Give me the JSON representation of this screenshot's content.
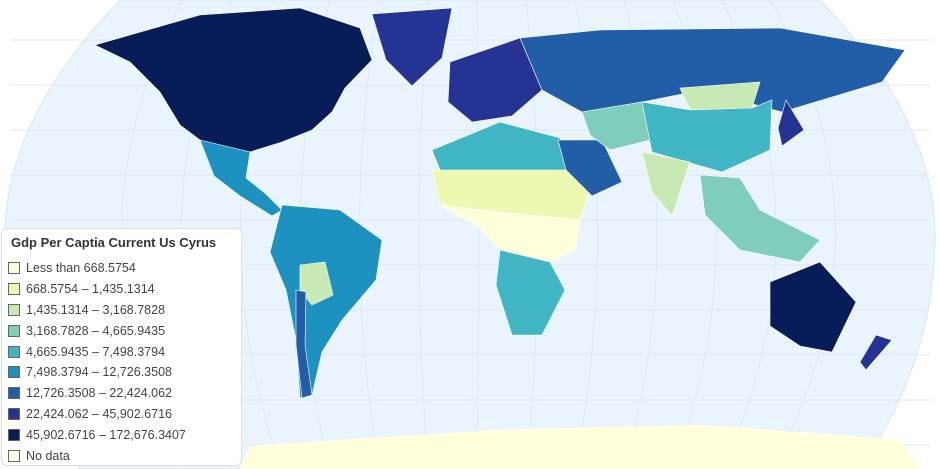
{
  "legend": {
    "title": "Gdp Per Captia Current Us Cyrus",
    "items": [
      {
        "label": "Less than 668.5754",
        "color": "#ffffd9"
      },
      {
        "label": "668.5754 – 1,435.1314",
        "color": "#edf8b1"
      },
      {
        "label": "1,435.1314 – 3,168.7828",
        "color": "#c7e9b4"
      },
      {
        "label": "3,168.7828 – 4,665.9435",
        "color": "#7fcdbb"
      },
      {
        "label": "4,665.9435 – 7,498.3794",
        "color": "#41b6c4"
      },
      {
        "label": "7,498.3794 – 12,726.3508",
        "color": "#1d91c0"
      },
      {
        "label": "12,726.3508 – 22,424.062",
        "color": "#225ea8"
      },
      {
        "label": "22,424.062 – 45,902.6716",
        "color": "#253494"
      },
      {
        "label": "45,902.6716 – 172,676.3407",
        "color": "#081d58"
      },
      {
        "label": "No data",
        "color": "#ffffe6"
      }
    ]
  },
  "map": {
    "ocean_color": "#eaf4fc",
    "regions": [
      {
        "name": "north-america",
        "color": "#081d58"
      },
      {
        "name": "greenland",
        "color": "#253494"
      },
      {
        "name": "mexico-central-america",
        "color": "#1d91c0"
      },
      {
        "name": "south-america",
        "color": "#1d91c0"
      },
      {
        "name": "bolivia-paraguay",
        "color": "#c7e9b4"
      },
      {
        "name": "chile",
        "color": "#225ea8"
      },
      {
        "name": "europe",
        "color": "#253494"
      },
      {
        "name": "russia",
        "color": "#225ea8"
      },
      {
        "name": "north-africa",
        "color": "#41b6c4"
      },
      {
        "name": "sahel",
        "color": "#edf8b1"
      },
      {
        "name": "central-africa",
        "color": "#ffffd9"
      },
      {
        "name": "southern-africa",
        "color": "#41b6c4"
      },
      {
        "name": "middle-east",
        "color": "#225ea8"
      },
      {
        "name": "central-asia",
        "color": "#7fcdbb"
      },
      {
        "name": "mongolia",
        "color": "#c7e9b4"
      },
      {
        "name": "china",
        "color": "#41b6c4"
      },
      {
        "name": "india",
        "color": "#c7e9b4"
      },
      {
        "name": "southeast-asia",
        "color": "#7fcdbb"
      },
      {
        "name": "japan",
        "color": "#253494"
      },
      {
        "name": "australia",
        "color": "#081d58"
      },
      {
        "name": "new-zealand",
        "color": "#253494"
      },
      {
        "name": "antarctica",
        "color": "#ffffd9"
      }
    ]
  }
}
